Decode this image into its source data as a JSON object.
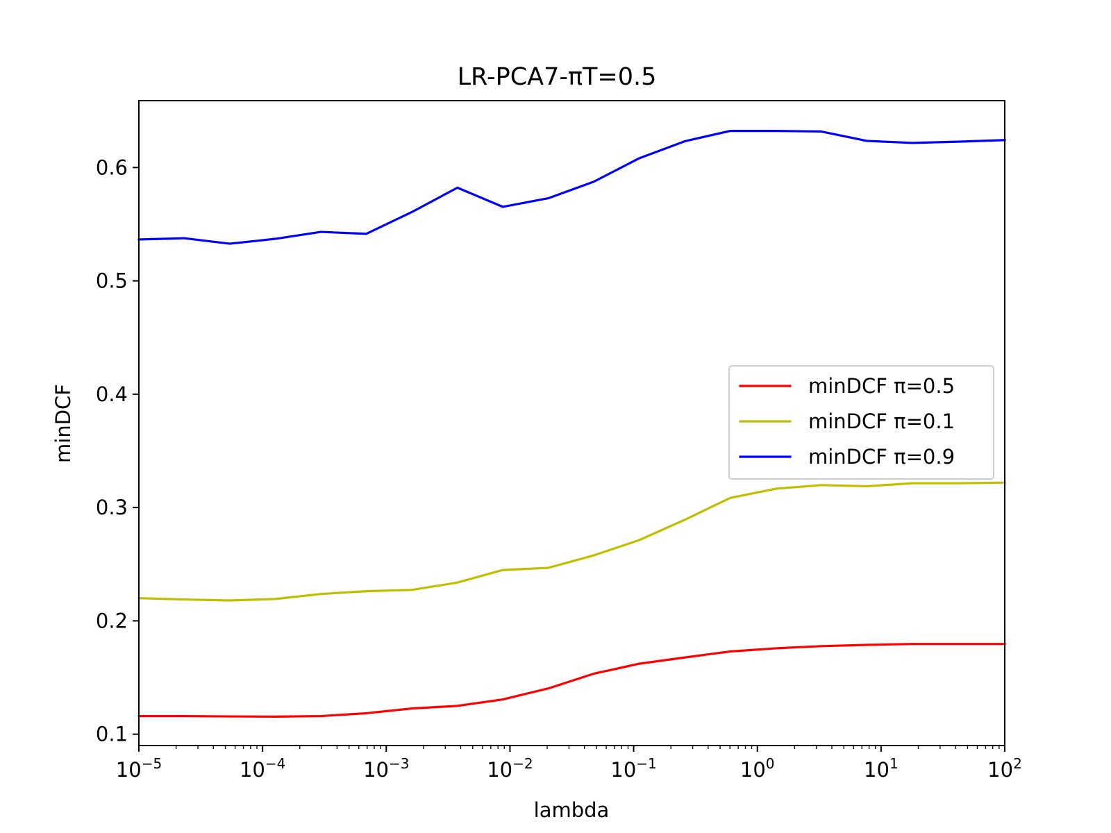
{
  "chart_data": {
    "type": "line",
    "title": "LR-PCA7-πT=0.5",
    "xlabel": "lambda",
    "ylabel": "minDCF",
    "xscale": "log",
    "xlim": [
      1e-05,
      100
    ],
    "ylim": [
      0.09,
      0.659
    ],
    "grid": false,
    "legend_position": "center-right",
    "x_tick_labels": [
      {
        "value": 1e-05,
        "base": "10",
        "exp": "−5"
      },
      {
        "value": 0.0001,
        "base": "10",
        "exp": "−4"
      },
      {
        "value": 0.001,
        "base": "10",
        "exp": "−3"
      },
      {
        "value": 0.01,
        "base": "10",
        "exp": "−2"
      },
      {
        "value": 0.1,
        "base": "10",
        "exp": "−1"
      },
      {
        "value": 1,
        "base": "10",
        "exp": "0"
      },
      {
        "value": 10,
        "base": "10",
        "exp": "1"
      },
      {
        "value": 100,
        "base": "10",
        "exp": "2"
      }
    ],
    "y_ticks": [
      {
        "value": 0.1,
        "label": "0.1"
      },
      {
        "value": 0.2,
        "label": "0.2"
      },
      {
        "value": 0.3,
        "label": "0.3"
      },
      {
        "value": 0.4,
        "label": "0.4"
      },
      {
        "value": 0.5,
        "label": "0.5"
      },
      {
        "value": 0.6,
        "label": "0.6"
      }
    ],
    "x": [
      1e-05,
      2.33e-05,
      5.43e-05,
      0.000127,
      0.000296,
      0.00069,
      0.00161,
      0.00376,
      0.00876,
      0.0204,
      0.0476,
      0.111,
      0.259,
      0.603,
      1.41,
      3.28,
      7.66,
      17.9,
      41.7,
      100
    ],
    "series": [
      {
        "name": "minDCF π=0.5",
        "color": "#ff0000",
        "values": [
          0.116,
          0.116,
          0.1157,
          0.1155,
          0.116,
          0.1185,
          0.1227,
          0.125,
          0.1307,
          0.1404,
          0.1534,
          0.1622,
          0.1677,
          0.173,
          0.1758,
          0.1777,
          0.1788,
          0.1796,
          0.1796,
          0.1796
        ]
      },
      {
        "name": "minDCF π=0.1",
        "color": "#bfbf00",
        "values": [
          0.22,
          0.2189,
          0.218,
          0.2193,
          0.2237,
          0.2262,
          0.2273,
          0.2338,
          0.2449,
          0.2468,
          0.2578,
          0.2713,
          0.2892,
          0.3085,
          0.3166,
          0.3198,
          0.3188,
          0.3214,
          0.3214,
          0.322
        ]
      },
      {
        "name": "minDCF π=0.9",
        "color": "#0000ff",
        "values": [
          0.5365,
          0.5376,
          0.5328,
          0.5371,
          0.5432,
          0.5415,
          0.5607,
          0.5822,
          0.5653,
          0.5729,
          0.5875,
          0.6082,
          0.6232,
          0.6323,
          0.6323,
          0.6318,
          0.6235,
          0.6217,
          0.6228,
          0.6242
        ]
      }
    ]
  }
}
